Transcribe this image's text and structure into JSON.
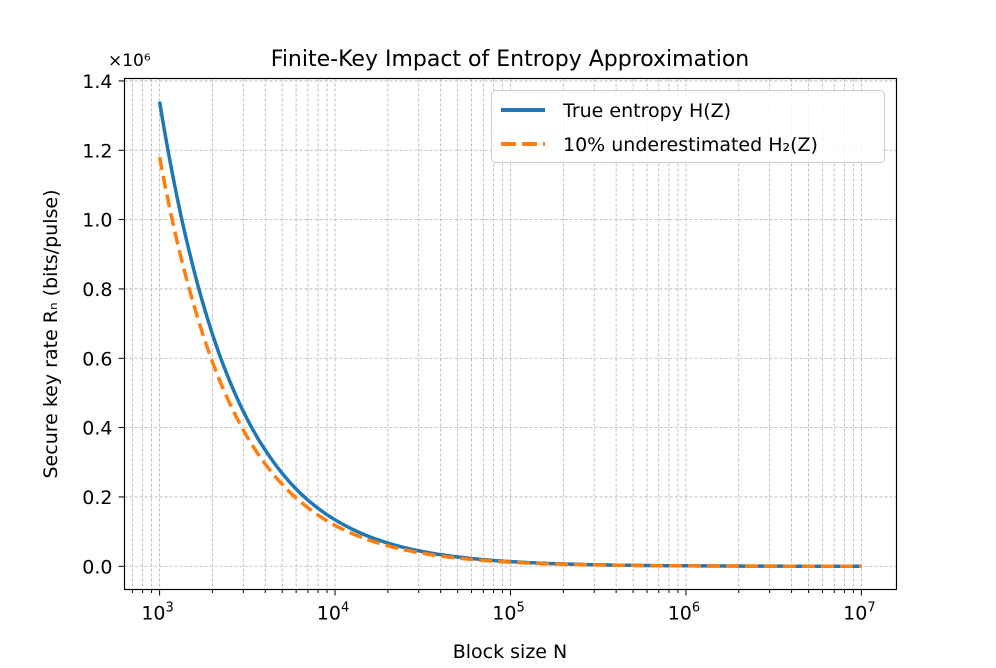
{
  "chart_data": {
    "type": "line",
    "title": "Finite-Key Impact of Entropy Approximation",
    "xlabel": "Block size N",
    "ylabel": "Secure key rate Rₙ (bits/pulse)",
    "y_multiplier_label": "×10⁶",
    "x_scale": "log",
    "xlim": [
      631,
      15850000
    ],
    "ylim": [
      -0.067,
      1.407
    ],
    "x_ticks": [
      1000,
      10000,
      100000,
      1000000,
      10000000
    ],
    "x_tick_labels": [
      [
        "10",
        "3"
      ],
      [
        "10",
        "4"
      ],
      [
        "10",
        "5"
      ],
      [
        "10",
        "6"
      ],
      [
        "10",
        "7"
      ]
    ],
    "y_ticks": [
      0.0,
      0.2,
      0.4,
      0.6,
      0.8,
      1.0,
      1.2,
      1.4
    ],
    "y_tick_labels": [
      "0.0",
      "0.2",
      "0.4",
      "0.6",
      "0.8",
      "1.0",
      "1.2",
      "1.4"
    ],
    "grid": true,
    "legend_position": "top-right",
    "series": [
      {
        "name": "True entropy H(Z)",
        "color": "#1f77b4",
        "style": "solid",
        "x": [
          1000,
          1500,
          2000,
          3000,
          5000,
          7000,
          10000,
          20000,
          50000,
          100000,
          1000000,
          10000000
        ],
        "y": [
          1.34,
          0.893,
          0.67,
          0.447,
          0.268,
          0.191,
          0.134,
          0.067,
          0.0268,
          0.0134,
          0.00134,
          0.000134
        ]
      },
      {
        "name": "10% underestimated H₂(Z)",
        "color": "#ff7f0e",
        "style": "dashed",
        "x": [
          1000,
          1500,
          2000,
          3000,
          5000,
          7000,
          10000,
          20000,
          50000,
          100000,
          1000000,
          10000000
        ],
        "y": [
          1.18,
          0.787,
          0.59,
          0.393,
          0.236,
          0.169,
          0.118,
          0.059,
          0.0236,
          0.0118,
          0.00118,
          0.000118
        ]
      }
    ]
  }
}
